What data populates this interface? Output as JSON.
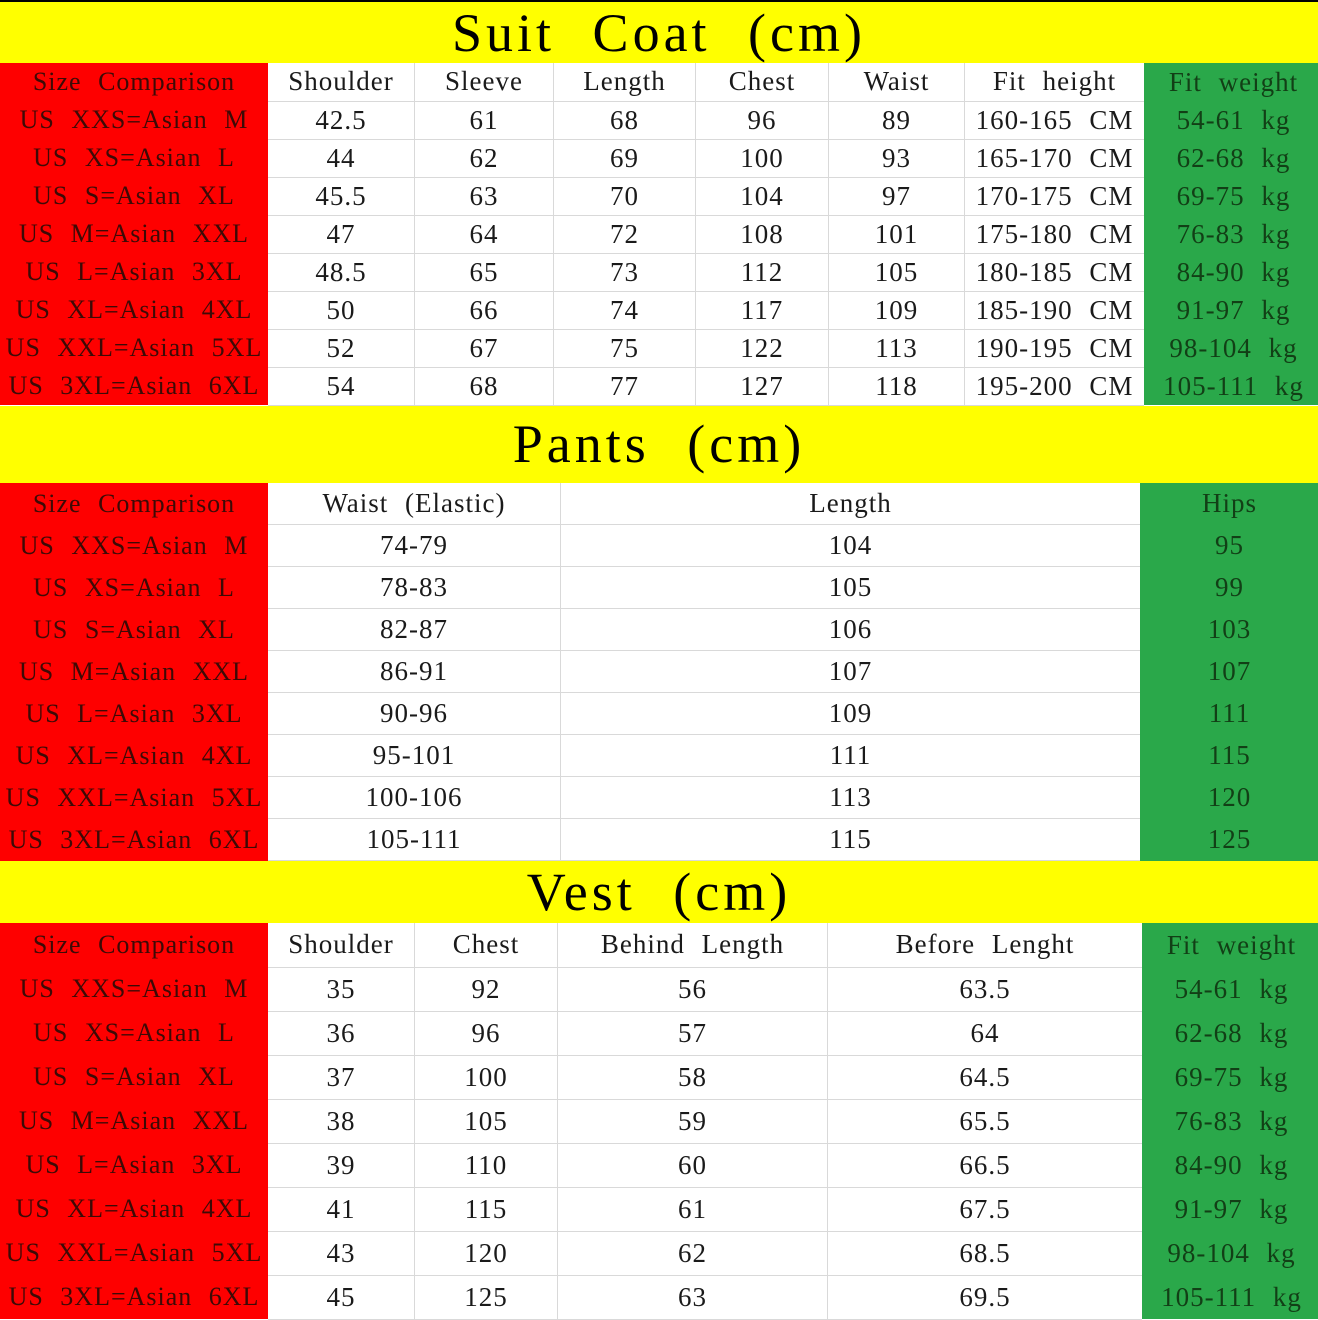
{
  "colors": {
    "band_bg": "#ffff00",
    "size_col_bg": "#fe0000",
    "size_col_text": "#3d0a06",
    "weight_col_bg": "#2aa84a",
    "weight_col_text": "#123f16",
    "grid_line": "#d9d9d9",
    "cell_text": "#1a1a1a",
    "title_text": "#000000",
    "top_border": "#000000"
  },
  "sections": [
    {
      "id": "suit-coat",
      "title": "Suit Coat (cm)",
      "headers": [
        "Size Comparison",
        "Shoulder",
        "Sleeve",
        "Length",
        "Chest",
        "Waist",
        "Fit height",
        "Fit weight"
      ],
      "rows": [
        [
          "US XXS=Asian M",
          "42.5",
          "61",
          "68",
          "96",
          "89",
          "160-165 CM",
          "54-61 kg"
        ],
        [
          "US XS=Asian L",
          "44",
          "62",
          "69",
          "100",
          "93",
          "165-170 CM",
          "62-68 kg"
        ],
        [
          "US S=Asian XL",
          "45.5",
          "63",
          "70",
          "104",
          "97",
          "170-175 CM",
          "69-75 kg"
        ],
        [
          "US M=Asian XXL",
          "47",
          "64",
          "72",
          "108",
          "101",
          "175-180 CM",
          "76-83 kg"
        ],
        [
          "US L=Asian 3XL",
          "48.5",
          "65",
          "73",
          "112",
          "105",
          "180-185 CM",
          "84-90 kg"
        ],
        [
          "US XL=Asian 4XL",
          "50",
          "66",
          "74",
          "117",
          "109",
          "185-190 CM",
          "91-97 kg"
        ],
        [
          "US XXL=Asian 5XL",
          "52",
          "67",
          "75",
          "122",
          "113",
          "190-195 CM",
          "98-104 kg"
        ],
        [
          "US 3XL=Asian 6XL",
          "54",
          "68",
          "77",
          "127",
          "118",
          "195-200 CM",
          "105-111 kg"
        ]
      ]
    },
    {
      "id": "pants",
      "title": "Pants (cm)",
      "headers": [
        "Size Comparison",
        "Waist (Elastic)",
        "Length",
        "Hips"
      ],
      "rows": [
        [
          "US XXS=Asian M",
          "74-79",
          "104",
          "95"
        ],
        [
          "US XS=Asian L",
          "78-83",
          "105",
          "99"
        ],
        [
          "US S=Asian XL",
          "82-87",
          "106",
          "103"
        ],
        [
          "US M=Asian XXL",
          "86-91",
          "107",
          "107"
        ],
        [
          "US L=Asian 3XL",
          "90-96",
          "109",
          "111"
        ],
        [
          "US XL=Asian 4XL",
          "95-101",
          "111",
          "115"
        ],
        [
          "US XXL=Asian 5XL",
          "100-106",
          "113",
          "120"
        ],
        [
          "US 3XL=Asian 6XL",
          "105-111",
          "115",
          "125"
        ]
      ]
    },
    {
      "id": "vest",
      "title": "Vest (cm)",
      "headers": [
        "Size Comparison",
        "Shoulder",
        "Chest",
        "Behind Length",
        "Before Lenght",
        "Fit weight"
      ],
      "rows": [
        [
          "US XXS=Asian M",
          "35",
          "92",
          "56",
          "63.5",
          "54-61 kg"
        ],
        [
          "US XS=Asian L",
          "36",
          "96",
          "57",
          "64",
          "62-68 kg"
        ],
        [
          "US S=Asian XL",
          "37",
          "100",
          "58",
          "64.5",
          "69-75 kg"
        ],
        [
          "US M=Asian XXL",
          "38",
          "105",
          "59",
          "65.5",
          "76-83 kg"
        ],
        [
          "US L=Asian 3XL",
          "39",
          "110",
          "60",
          "66.5",
          "84-90 kg"
        ],
        [
          "US XL=Asian 4XL",
          "41",
          "115",
          "61",
          "67.5",
          "91-97 kg"
        ],
        [
          "US XXL=Asian 5XL",
          "43",
          "120",
          "62",
          "68.5",
          "98-104 kg"
        ],
        [
          "US 3XL=Asian 6XL",
          "45",
          "125",
          "63",
          "69.5",
          "105-111 kg"
        ]
      ]
    }
  ]
}
